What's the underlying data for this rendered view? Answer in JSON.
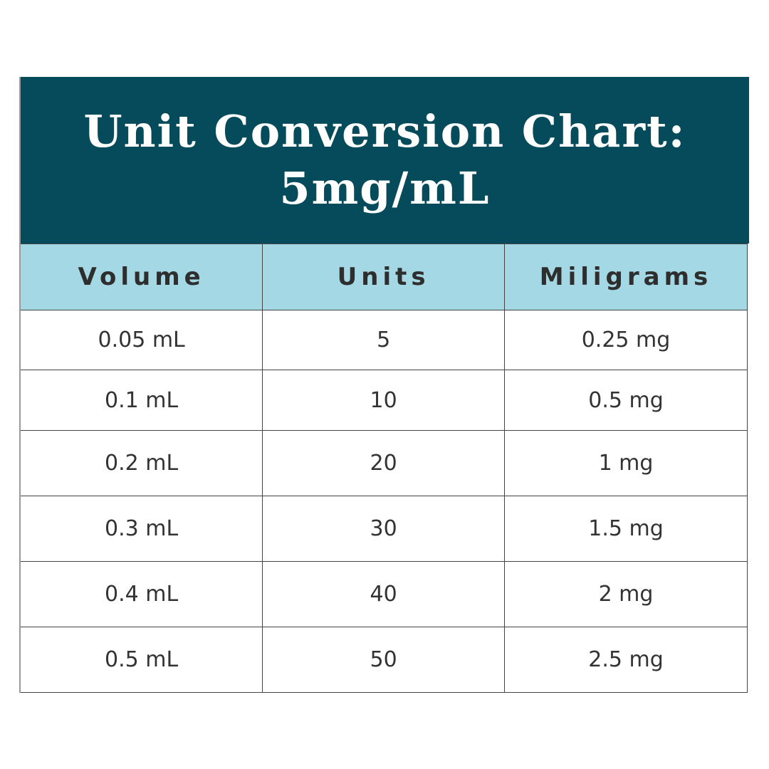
{
  "title": {
    "line1": "Unit Conversion Chart:",
    "line2": "5mg/mL"
  },
  "colors": {
    "title_bg": "#054b5b",
    "header_bg": "#a4d8e4",
    "text": "#333333"
  },
  "chart_data": {
    "type": "table",
    "title": "Unit Conversion Chart: 5mg/mL",
    "columns": [
      "Volume",
      "Units",
      "Miligrams"
    ],
    "rows": [
      [
        "0.05 mL",
        "5",
        "0.25 mg"
      ],
      [
        "0.1 mL",
        "10",
        "0.5 mg"
      ],
      [
        "0.2 mL",
        "20",
        "1 mg"
      ],
      [
        "0.3 mL",
        "30",
        "1.5 mg"
      ],
      [
        "0.4 mL",
        "40",
        "2 mg"
      ],
      [
        "0.5 mL",
        "50",
        "2.5 mg"
      ]
    ]
  }
}
